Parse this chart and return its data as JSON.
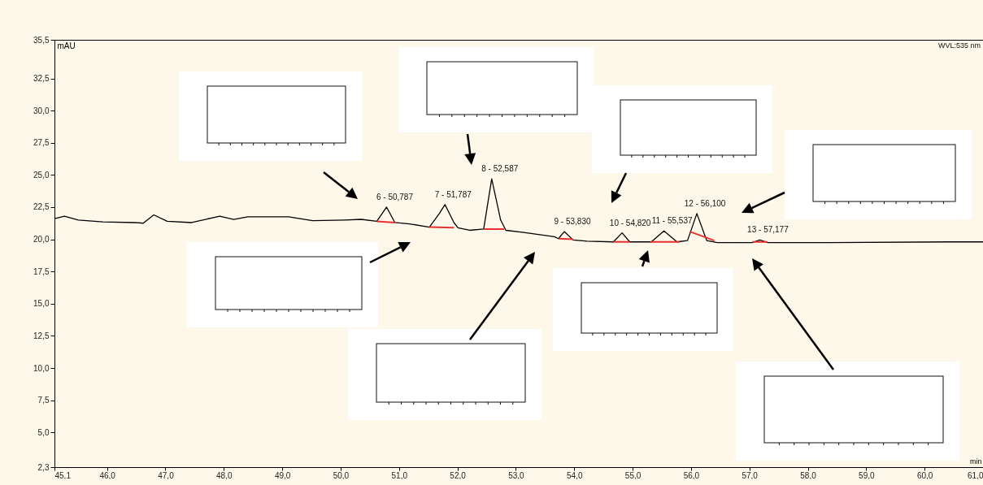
{
  "chart_data": {
    "type": "line",
    "xlabel": "min",
    "ylabel": "mAU",
    "annotations": [
      "WVL:535 nm",
      {
        "text": "6 - 50,787",
        "x": 50.787,
        "y": 22.5
      },
      {
        "text": "7 - 51,787",
        "x": 51.787,
        "y": 22.7
      },
      {
        "text": "8 - 52,587",
        "x": 52.587,
        "y": 24.7
      },
      {
        "text": "9 - 53,830",
        "x": 53.83,
        "y": 20.6
      },
      {
        "text": "10 - 54,820",
        "x": 54.82,
        "y": 20.5
      },
      {
        "text": "11 - 55,537",
        "x": 55.537,
        "y": 20.65
      },
      {
        "text": "12 - 56,100",
        "x": 56.1,
        "y": 22.0
      },
      {
        "text": "13 - 57,177",
        "x": 57.177,
        "y": 19.95
      }
    ],
    "series": [
      {
        "color": "#000000",
        "x": [
          45.1,
          45.27,
          45.51,
          45.93,
          46.48,
          46.62,
          46.8,
          47.03,
          47.45,
          47.93,
          48.17,
          48.41,
          49.11,
          49.52,
          50.07,
          50.35,
          50.62,
          50.787,
          50.93,
          51.18,
          51.52,
          51.69,
          51.787,
          51.94,
          52.01,
          52.21,
          52.45,
          52.587,
          52.74,
          52.83,
          53.11,
          53.66,
          53.73,
          53.83,
          53.98,
          54.22,
          54.67,
          54.82,
          54.95,
          55.32,
          55.537,
          55.76,
          55.94,
          56.1,
          56.27,
          56.45,
          57.05,
          57.177,
          57.32,
          58.36,
          60.43,
          61.0
        ],
        "values": [
          21.6,
          21.8,
          21.5,
          21.35,
          21.3,
          21.25,
          21.9,
          21.4,
          21.3,
          21.8,
          21.55,
          21.75,
          21.75,
          21.45,
          21.5,
          21.55,
          21.4,
          22.5,
          21.3,
          21.2,
          20.95,
          22.0,
          22.7,
          21.3,
          20.9,
          20.7,
          20.8,
          24.7,
          21.5,
          20.7,
          20.55,
          20.2,
          20.05,
          20.6,
          19.95,
          19.85,
          19.8,
          20.5,
          19.8,
          19.8,
          20.65,
          19.8,
          19.9,
          22.0,
          19.9,
          19.75,
          19.75,
          19.95,
          19.75,
          19.75,
          19.8,
          19.8
        ]
      },
      {
        "color": "#e83030",
        "x": [
          50.62,
          50.93,
          50.95,
          51.52,
          51.94,
          51.96,
          52.45,
          52.8,
          52.82,
          53.73,
          53.98,
          54.0,
          54.67,
          54.95,
          54.97,
          55.3,
          55.8,
          55.82,
          55.98,
          56.4,
          56.42,
          57.05,
          57.3
        ],
        "values": [
          21.4,
          21.3,
          null,
          20.95,
          20.9,
          null,
          20.8,
          20.8,
          null,
          20.05,
          20.0,
          null,
          19.8,
          19.8,
          null,
          19.8,
          19.8,
          null,
          20.6,
          19.9,
          null,
          19.8,
          19.8
        ]
      }
    ],
    "xlim": [
      45.1,
      61.0
    ],
    "xticks": [
      {
        "value": 45.1,
        "label": "45,1"
      },
      {
        "value": 46,
        "label": "46,0"
      },
      {
        "value": 47,
        "label": "47,0"
      },
      {
        "value": 48,
        "label": "48,0"
      },
      {
        "value": 49,
        "label": "49,0"
      },
      {
        "value": 50,
        "label": "50,0"
      },
      {
        "value": 51,
        "label": "51,0"
      },
      {
        "value": 52,
        "label": "52,0"
      },
      {
        "value": 53,
        "label": "53,0"
      },
      {
        "value": 54,
        "label": "54,0"
      },
      {
        "value": 55,
        "label": "55,0"
      },
      {
        "value": 56,
        "label": "56,0"
      },
      {
        "value": 57,
        "label": "57,0"
      },
      {
        "value": 58,
        "label": "58,0"
      },
      {
        "value": 59,
        "label": "59,0"
      },
      {
        "value": 60,
        "label": "60,0"
      },
      {
        "value": 61,
        "label": "61,0"
      }
    ],
    "ylim": [
      2.3,
      35.5
    ],
    "yticks": [
      {
        "value": 2.3,
        "label": "2,3"
      },
      {
        "value": 5,
        "label": "5,0"
      },
      {
        "value": 7.5,
        "label": "7,5"
      },
      {
        "value": 10,
        "label": "10,0"
      },
      {
        "value": 12.5,
        "label": "12,5"
      },
      {
        "value": 15,
        "label": "15,0"
      },
      {
        "value": 17.5,
        "label": "17,5"
      },
      {
        "value": 20,
        "label": "20,0"
      },
      {
        "value": 22.5,
        "label": "22,5"
      },
      {
        "value": 25,
        "label": "25,0"
      },
      {
        "value": 27.5,
        "label": "27,5"
      },
      {
        "value": 30,
        "label": "30,0"
      },
      {
        "value": 32.5,
        "label": "32,5"
      },
      {
        "value": 35.5,
        "label": "35,5"
      }
    ],
    "grid": false,
    "legend": false
  }
}
